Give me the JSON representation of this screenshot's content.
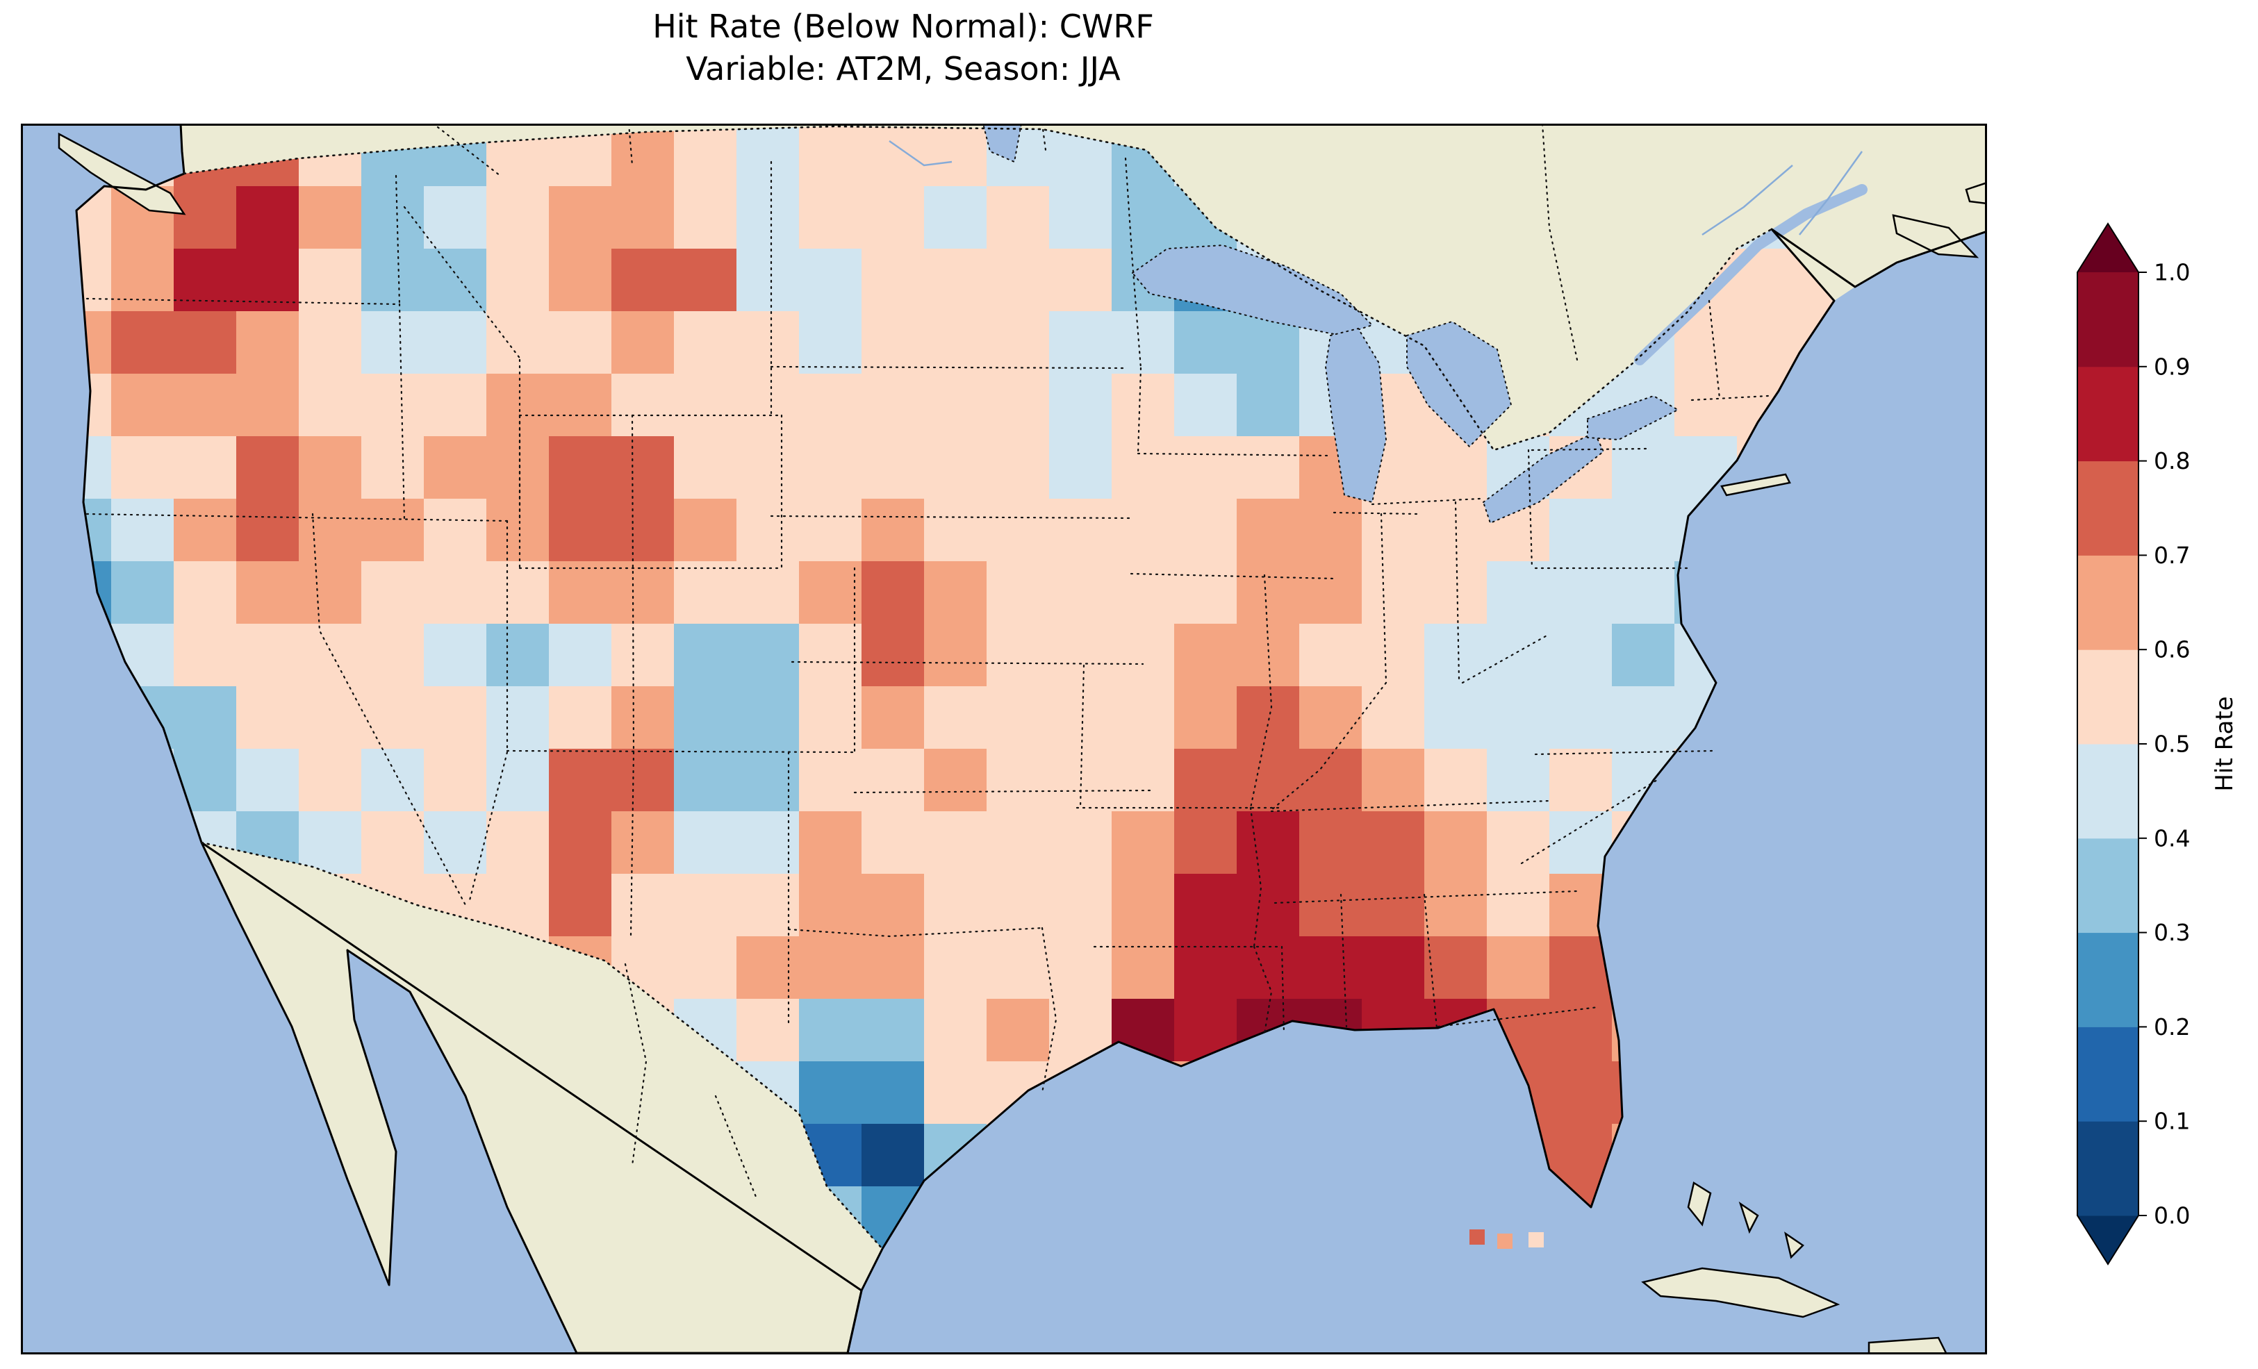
{
  "title": {
    "line1": "Hit Rate (Below Normal): CWRF",
    "line2": "Variable: AT2M, Season: JJA"
  },
  "colorbar": {
    "label": "Hit Rate",
    "tick_labels": [
      "0.0",
      "0.1",
      "0.2",
      "0.3",
      "0.4",
      "0.5",
      "0.6",
      "0.7",
      "0.8",
      "0.9",
      "1.0"
    ]
  },
  "map_colors": {
    "ocean": "#9fbce1",
    "land": "#ecebd4",
    "lake": "#9fbce1",
    "coastline": "#000000",
    "border": "#111111"
  },
  "chart_data": {
    "type": "heatmap",
    "title": "Hit Rate (Below Normal): CWRF\nVariable: AT2M, Season: JJA",
    "metric": "Hit Rate (Below Normal)",
    "model": "CWRF",
    "variable": "AT2M",
    "season": "JJA",
    "colorbar_label": "Hit Rate",
    "value_range": [
      0.0,
      1.0
    ],
    "levels": [
      0.0,
      0.1,
      0.2,
      0.3,
      0.4,
      0.5,
      0.6,
      0.7,
      0.8,
      0.9,
      1.0
    ],
    "colormap": {
      "name": "RdBu_r (discrete)",
      "bin_colors": [
        "#114781",
        "#2166ac",
        "#4393c3",
        "#92c5de",
        "#d1e5f0",
        "#fddbc7",
        "#f4a582",
        "#d6604d",
        "#b2182b",
        "#8e0c26"
      ],
      "under_color": "#053061",
      "over_color": "#67001f"
    },
    "grid": {
      "cols": 29,
      "rows": 18,
      "values": [
        [
          0.55,
          0.55,
          0.7,
          0.75,
          0.55,
          0.35,
          0.35,
          0.55,
          0.55,
          0.6,
          0.55,
          0.45,
          0.5,
          0.55,
          0.5,
          0.45,
          0.4,
          0.35,
          0.4,
          0.45,
          0.5,
          0.5,
          0.5,
          0.55,
          0.5,
          0.5,
          0.45,
          0.35,
          0.4
        ],
        [
          0.55,
          0.6,
          0.75,
          0.8,
          0.6,
          0.35,
          0.4,
          0.55,
          0.6,
          0.65,
          0.55,
          0.45,
          0.55,
          0.5,
          0.45,
          0.5,
          0.45,
          0.35,
          0.35,
          0.4,
          0.45,
          0.5,
          0.5,
          0.55,
          0.5,
          0.45,
          0.5,
          0.4,
          0.45
        ],
        [
          0.55,
          0.65,
          0.8,
          0.8,
          0.55,
          0.35,
          0.35,
          0.5,
          0.6,
          0.75,
          0.7,
          0.45,
          0.4,
          0.55,
          0.5,
          0.55,
          0.5,
          0.35,
          0.25,
          0.4,
          0.45,
          0.45,
          0.5,
          0.55,
          0.55,
          0.45,
          0.55,
          0.5,
          0.5
        ],
        [
          0.6,
          0.7,
          0.75,
          0.6,
          0.5,
          0.4,
          0.45,
          0.55,
          0.55,
          0.6,
          0.55,
          0.5,
          0.45,
          0.55,
          0.55,
          0.5,
          0.45,
          0.4,
          0.35,
          0.35,
          0.4,
          0.4,
          0.5,
          0.55,
          0.5,
          0.45,
          0.5,
          0.55,
          0.5
        ],
        [
          0.55,
          0.6,
          0.65,
          0.6,
          0.55,
          0.5,
          0.55,
          0.65,
          0.6,
          0.55,
          0.5,
          0.55,
          0.55,
          0.5,
          0.55,
          0.5,
          0.45,
          0.5,
          0.4,
          0.35,
          0.45,
          0.5,
          0.55,
          0.5,
          0.45,
          0.45,
          0.5,
          0.5,
          0.5
        ],
        [
          0.45,
          0.5,
          0.55,
          0.7,
          0.6,
          0.55,
          0.6,
          0.65,
          0.75,
          0.7,
          0.55,
          0.55,
          0.5,
          0.55,
          0.55,
          0.5,
          0.45,
          0.55,
          0.5,
          0.55,
          0.6,
          0.55,
          0.5,
          0.45,
          0.5,
          0.4,
          0.45,
          0.5,
          0.5
        ],
        [
          0.35,
          0.45,
          0.6,
          0.7,
          0.6,
          0.6,
          0.55,
          0.6,
          0.75,
          0.75,
          0.6,
          0.55,
          0.55,
          0.6,
          0.55,
          0.55,
          0.5,
          0.55,
          0.55,
          0.6,
          0.65,
          0.55,
          0.5,
          0.5,
          0.45,
          0.4,
          0.45,
          0.5,
          0.5
        ],
        [
          0.25,
          0.35,
          0.55,
          0.65,
          0.6,
          0.55,
          0.55,
          0.5,
          0.6,
          0.6,
          0.55,
          0.55,
          0.6,
          0.7,
          0.65,
          0.55,
          0.55,
          0.5,
          0.55,
          0.65,
          0.65,
          0.55,
          0.5,
          0.45,
          0.4,
          0.4,
          0.35,
          0.45,
          0.5
        ],
        [
          0.3,
          0.4,
          0.5,
          0.55,
          0.55,
          0.5,
          0.45,
          0.35,
          0.45,
          0.5,
          0.3,
          0.35,
          0.55,
          0.7,
          0.6,
          0.55,
          0.55,
          0.55,
          0.6,
          0.6,
          0.55,
          0.5,
          0.45,
          0.4,
          0.45,
          0.35,
          0.4,
          0.5,
          0.5
        ],
        [
          0.4,
          0.35,
          0.35,
          0.5,
          0.55,
          0.5,
          0.5,
          0.4,
          0.55,
          0.65,
          0.3,
          0.3,
          0.5,
          0.65,
          0.55,
          0.55,
          0.5,
          0.55,
          0.65,
          0.7,
          0.6,
          0.55,
          0.45,
          0.4,
          0.45,
          0.4,
          0.45,
          0.5,
          0.5
        ],
        [
          0.45,
          0.4,
          0.35,
          0.45,
          0.5,
          0.45,
          0.5,
          0.45,
          0.7,
          0.7,
          0.35,
          0.35,
          0.55,
          0.55,
          0.6,
          0.55,
          0.5,
          0.55,
          0.7,
          0.75,
          0.7,
          0.65,
          0.5,
          0.45,
          0.5,
          0.45,
          0.5,
          0.5,
          0.5
        ],
        [
          0.5,
          0.45,
          0.4,
          0.35,
          0.45,
          0.5,
          0.45,
          0.5,
          0.75,
          0.6,
          0.4,
          0.45,
          0.65,
          0.55,
          0.55,
          0.55,
          0.55,
          0.6,
          0.75,
          0.8,
          0.75,
          0.7,
          0.6,
          0.5,
          0.45,
          0.5,
          0.5,
          0.5,
          0.5
        ],
        [
          0.5,
          0.5,
          0.45,
          0.4,
          0.5,
          0.55,
          0.5,
          0.55,
          0.7,
          0.55,
          0.5,
          0.55,
          0.65,
          0.6,
          0.55,
          0.55,
          0.55,
          0.6,
          0.8,
          0.8,
          0.75,
          0.75,
          0.65,
          0.55,
          0.6,
          0.55,
          0.5,
          0.5,
          0.5
        ],
        [
          0.5,
          0.5,
          0.5,
          0.45,
          0.5,
          0.55,
          0.55,
          0.5,
          0.6,
          0.5,
          0.55,
          0.6,
          0.65,
          0.6,
          0.55,
          0.55,
          0.55,
          0.65,
          0.8,
          0.85,
          0.8,
          0.8,
          0.7,
          0.65,
          0.7,
          0.6,
          0.55,
          0.5,
          0.5
        ],
        [
          0.5,
          0.5,
          0.5,
          0.5,
          0.5,
          0.55,
          0.55,
          0.55,
          0.55,
          0.5,
          0.45,
          0.5,
          0.3,
          0.35,
          0.55,
          0.6,
          0.55,
          0.95,
          0.85,
          0.9,
          0.9,
          0.85,
          0.8,
          0.7,
          0.7,
          0.65,
          0.55,
          0.5,
          0.5
        ],
        [
          0.5,
          0.5,
          0.5,
          0.5,
          0.5,
          0.5,
          0.5,
          0.5,
          0.5,
          0.5,
          0.5,
          0.45,
          0.2,
          0.25,
          0.5,
          0.55,
          0.55,
          0.6,
          0.6,
          0.6,
          0.6,
          0.6,
          0.6,
          0.7,
          0.75,
          0.7,
          0.6,
          0.55,
          0.5
        ],
        [
          0.5,
          0.5,
          0.5,
          0.5,
          0.5,
          0.5,
          0.5,
          0.5,
          0.5,
          0.5,
          0.5,
          0.5,
          0.15,
          0.05,
          0.3,
          0.5,
          0.5,
          0.5,
          0.5,
          0.5,
          0.5,
          0.5,
          0.5,
          0.7,
          0.7,
          0.65,
          0.5,
          0.5,
          0.5
        ],
        [
          0.5,
          0.5,
          0.5,
          0.5,
          0.5,
          0.5,
          0.5,
          0.5,
          0.5,
          0.5,
          0.5,
          0.5,
          0.3,
          0.2,
          0.5,
          0.5,
          0.5,
          0.5,
          0.5,
          0.5,
          0.5,
          0.5,
          0.5,
          0.5,
          0.7,
          0.65,
          0.5,
          0.5,
          0.5
        ]
      ]
    },
    "florida_keys_values": [
      0.75,
      0.65,
      0.5
    ]
  }
}
